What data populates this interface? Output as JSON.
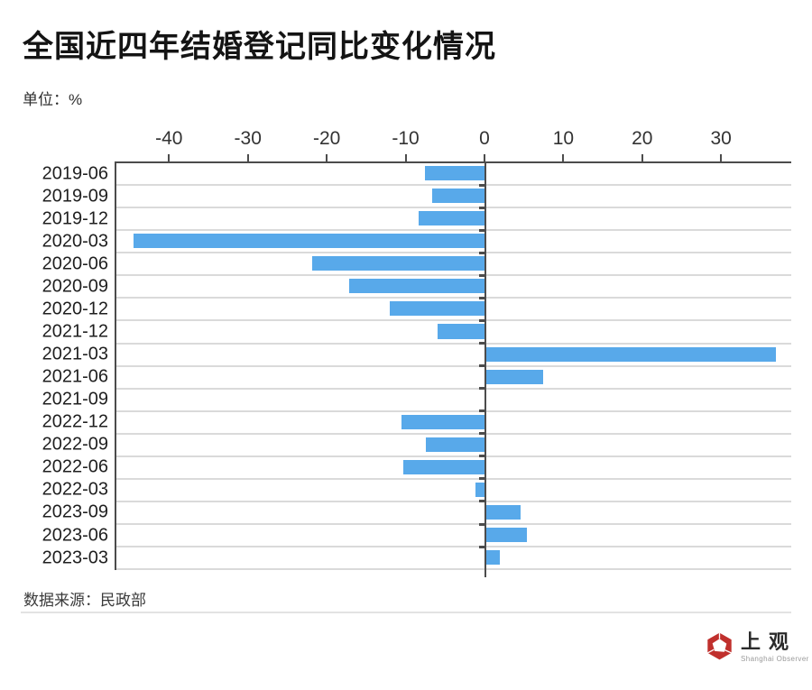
{
  "header": {
    "title": "全国近四年结婚登记同比变化情况",
    "unit_label": "单位：%"
  },
  "chart_data": {
    "type": "bar",
    "orientation": "horizontal",
    "title": "全国近四年结婚登记同比变化情况",
    "unit": "%",
    "categories": [
      "2019-06",
      "2019-09",
      "2019-12",
      "2020-03",
      "2020-06",
      "2020-09",
      "2020-12",
      "2021-12",
      "2021-03",
      "2021-06",
      "2021-09",
      "2022-12",
      "2022-09",
      "2022-06",
      "2022-03",
      "2023-09",
      "2023-06",
      "2023-03"
    ],
    "values": [
      -7.7,
      -6.7,
      -8.5,
      -44.7,
      -22.0,
      -17.3,
      -12.2,
      -6.1,
      36.9,
      7.4,
      -0.1,
      -10.6,
      -7.5,
      -10.4,
      -1.2,
      4.5,
      5.3,
      1.9
    ],
    "xticks": [
      -40,
      -30,
      -20,
      -10,
      0,
      10,
      20,
      30
    ],
    "xlim": [
      -46.9,
      38.9
    ],
    "bar_color": "#58a9ea",
    "grid": true,
    "legend": false,
    "xlabel": "",
    "ylabel": ""
  },
  "footer": {
    "source": "数据来源：民政部",
    "logo_cn": "上观",
    "logo_en": "Shanghai Observer"
  },
  "colors": {
    "bar": "#58a9ea",
    "axis": "#4c4c4c",
    "grid": "#dadada",
    "logo_red": "#c0302d"
  }
}
